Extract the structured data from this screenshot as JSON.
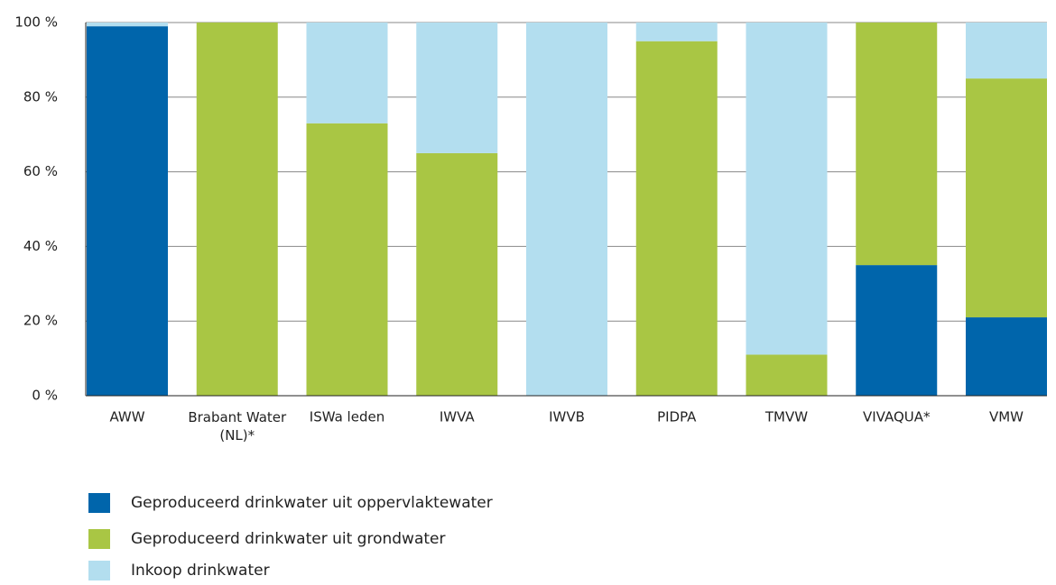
{
  "chart_data": {
    "type": "stacked_bar",
    "categories": [
      "AWW",
      "Brabant Water (NL)*",
      "ISWa leden",
      "IWVA",
      "IWVB",
      "PIDPA",
      "TMVW",
      "VIVAQUA*",
      "VMW"
    ],
    "series": [
      {
        "name": "Geproduceerd drinkwater uit oppervlaktewater",
        "color": "#0065ab",
        "values": [
          99,
          0,
          0,
          0,
          0,
          0,
          0,
          35,
          21
        ]
      },
      {
        "name": "Geproduceerd drinkwater uit grondwater",
        "color": "#a9c644",
        "values": [
          0,
          100,
          73,
          65,
          0,
          95,
          11,
          65,
          64
        ]
      },
      {
        "name": "Inkoop drinkwater",
        "color": "#b3deef",
        "values": [
          1,
          0,
          27,
          35,
          100,
          5,
          89,
          0,
          15
        ]
      }
    ],
    "ylim": [
      0,
      100
    ],
    "yticks": [
      {
        "value": 0,
        "label": "0 %"
      },
      {
        "value": 20,
        "label": "20 %"
      },
      {
        "value": 40,
        "label": "40 %"
      },
      {
        "value": 60,
        "label": "60 %"
      },
      {
        "value": 80,
        "label": "80 %"
      },
      {
        "value": 100,
        "label": "100 %"
      }
    ],
    "grid": true
  }
}
